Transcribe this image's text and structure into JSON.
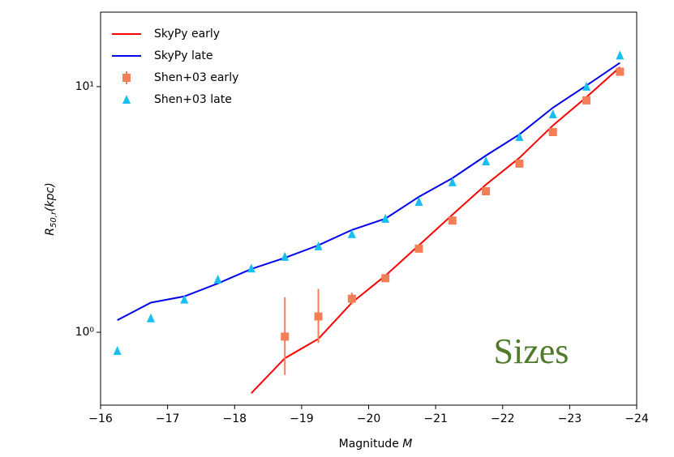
{
  "chart_data": {
    "type": "line",
    "xlabel_parts": [
      "Magnitude",
      "M"
    ],
    "ylabel_parts": [
      "R",
      "50,r",
      "(kpc)"
    ],
    "annotation": "Sizes",
    "xlim": [
      -16,
      -24
    ],
    "xticks": [
      {
        "value": -16,
        "label": "−16"
      },
      {
        "value": -17,
        "label": "−17"
      },
      {
        "value": -18,
        "label": "−18"
      },
      {
        "value": -19,
        "label": "−19"
      },
      {
        "value": -20,
        "label": "−20"
      },
      {
        "value": -21,
        "label": "−21"
      },
      {
        "value": -22,
        "label": "−22"
      },
      {
        "value": -23,
        "label": "−23"
      },
      {
        "value": -24,
        "label": "−24"
      }
    ],
    "ylim": [
      0.505,
      20.1
    ],
    "yticks": [
      {
        "value": 1,
        "label": "10⁰"
      },
      {
        "value": 10,
        "label": "10¹"
      }
    ],
    "yscale": "log",
    "legend": "upper left",
    "series": [
      {
        "name": "SkyPy early",
        "type": "line",
        "color": "#ff0000",
        "x": [
          -18.25,
          -18.75,
          -19.25,
          -19.75,
          -20.25,
          -20.75,
          -21.25,
          -21.75,
          -22.25,
          -22.75,
          -23.25,
          -23.75
        ],
        "values": [
          0.565,
          0.784,
          0.94,
          1.32,
          1.7,
          2.26,
          3.01,
          3.99,
          5.13,
          6.95,
          9.06,
          12.0
        ]
      },
      {
        "name": "SkyPy late",
        "type": "line",
        "color": "#0000ee",
        "x": [
          -16.25,
          -16.75,
          -17.25,
          -17.75,
          -18.25,
          -18.75,
          -19.25,
          -19.75,
          -20.25,
          -20.75,
          -21.25,
          -21.75,
          -22.25,
          -22.75,
          -23.25,
          -23.75
        ],
        "values": [
          1.12,
          1.32,
          1.4,
          1.58,
          1.81,
          2.01,
          2.26,
          2.61,
          2.9,
          3.56,
          4.24,
          5.24,
          6.39,
          8.21,
          10.1,
          12.5
        ]
      },
      {
        "name": "Shen+03 early",
        "type": "errorbar",
        "marker": "square",
        "color": "#f47f56",
        "x": [
          -18.75,
          -19.25,
          -19.75,
          -20.25,
          -20.75,
          -21.25,
          -21.75,
          -22.25,
          -22.75,
          -23.25,
          -23.75
        ],
        "values": [
          0.96,
          1.16,
          1.37,
          1.66,
          2.19,
          2.85,
          3.75,
          4.86,
          6.53,
          8.79,
          11.5
        ],
        "lower": [
          0.67,
          0.905,
          1.3,
          1.62,
          2.14,
          2.79,
          3.68,
          4.78,
          6.43,
          8.67,
          11.35
        ],
        "upper": [
          1.39,
          1.5,
          1.45,
          1.7,
          2.24,
          2.91,
          3.82,
          4.94,
          6.63,
          8.91,
          11.65
        ]
      },
      {
        "name": "Shen+03 late",
        "type": "scatter",
        "marker": "triangle",
        "color": "#17bff0",
        "x": [
          -16.25,
          -16.75,
          -17.25,
          -17.75,
          -18.25,
          -18.75,
          -19.25,
          -19.75,
          -20.25,
          -20.75,
          -21.25,
          -21.75,
          -22.25,
          -22.75,
          -23.25,
          -23.75
        ],
        "values": [
          0.84,
          1.14,
          1.36,
          1.64,
          1.82,
          2.03,
          2.24,
          2.51,
          2.9,
          3.4,
          4.08,
          4.97,
          6.24,
          7.72,
          10.0,
          13.4
        ]
      }
    ]
  }
}
